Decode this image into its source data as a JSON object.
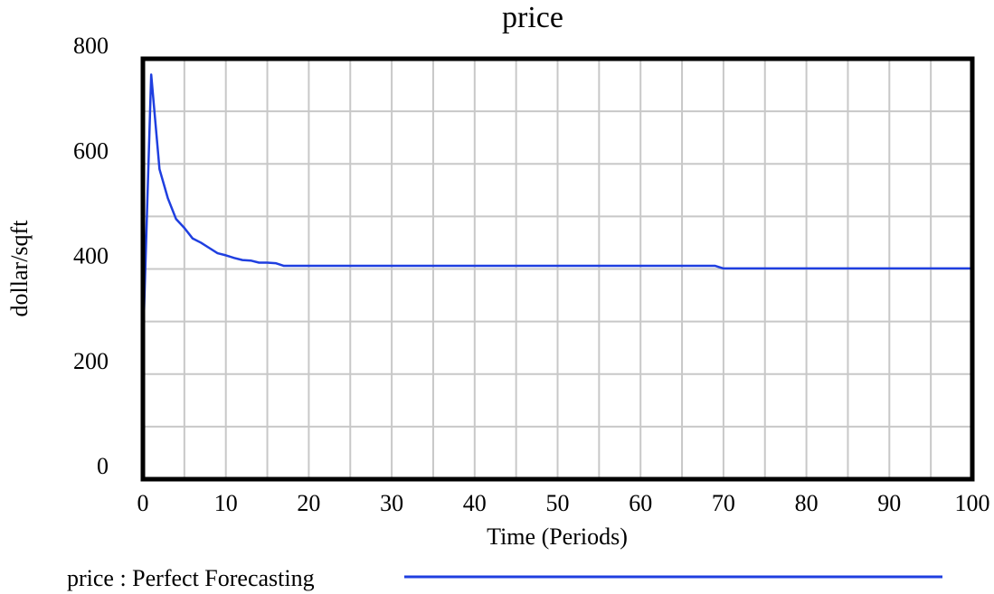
{
  "chart_data": {
    "type": "line",
    "title": "price",
    "xlabel": "Time (Periods)",
    "ylabel": "dollar/sqft",
    "xlim": [
      0,
      100
    ],
    "ylim": [
      0,
      800
    ],
    "x_ticks": [
      0,
      10,
      20,
      30,
      40,
      50,
      60,
      70,
      80,
      90,
      100
    ],
    "x_tick_labels": [
      "0",
      "10",
      "20",
      "30",
      "40",
      "50",
      "60",
      "70",
      "80",
      "90",
      "100"
    ],
    "y_ticks": [
      0,
      200,
      400,
      600,
      800
    ],
    "y_tick_labels": [
      "0",
      "200",
      "400",
      "600",
      "800"
    ],
    "grid": true,
    "legend_position": "bottom",
    "series": [
      {
        "name": "price : Perfect Forecasting",
        "color": "#1f3fe0",
        "x": [
          0,
          1,
          2,
          3,
          4,
          5,
          6,
          7,
          8,
          9,
          10,
          11,
          12,
          13,
          14,
          15,
          16,
          17,
          20,
          30,
          40,
          50,
          60,
          69,
          70,
          80,
          90,
          100
        ],
        "y": [
          250,
          770,
          590,
          535,
          495,
          478,
          458,
          450,
          440,
          430,
          426,
          421,
          417,
          416,
          412,
          412,
          411,
          406,
          406,
          406,
          406,
          406,
          406,
          406,
          401,
          401,
          401,
          401
        ]
      }
    ]
  }
}
